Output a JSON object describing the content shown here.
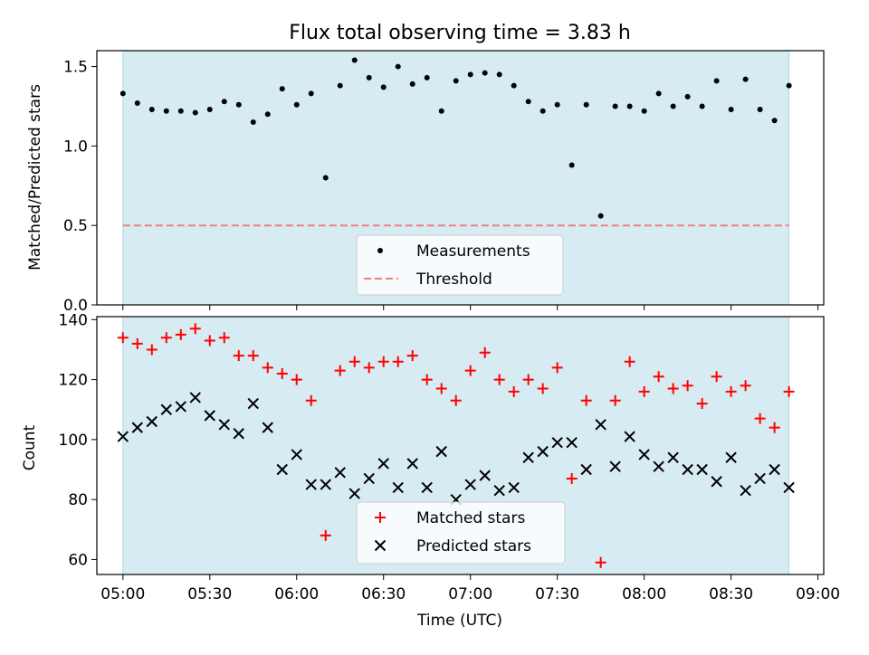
{
  "chart_data": [
    {
      "type": "scatter",
      "title": "Flux total observing time = 3.83 h",
      "xlabel": "",
      "ylabel": "Matched/Predicted stars",
      "ylim": [
        0,
        1.6
      ],
      "xlim": [
        "04:51",
        "09:02"
      ],
      "yticks": [
        "0.0",
        "0.5",
        "1.0",
        "1.5"
      ],
      "shaded_span": [
        "05:00",
        "08:50"
      ],
      "legend_position": "bottom-center",
      "series": [
        {
          "name": "Measurements",
          "color": "#000000",
          "marker": "dot",
          "x": [
            "05:00",
            "05:05",
            "05:10",
            "05:15",
            "05:20",
            "05:25",
            "05:30",
            "05:35",
            "05:40",
            "05:45",
            "05:50",
            "05:55",
            "06:00",
            "06:05",
            "06:10",
            "06:15",
            "06:20",
            "06:25",
            "06:30",
            "06:35",
            "06:40",
            "06:45",
            "06:50",
            "06:55",
            "07:00",
            "07:05",
            "07:10",
            "07:15",
            "07:20",
            "07:25",
            "07:30",
            "07:35",
            "07:40",
            "07:45",
            "07:50",
            "07:55",
            "08:00",
            "08:05",
            "08:10",
            "08:15",
            "08:20",
            "08:25",
            "08:30",
            "08:35",
            "08:40",
            "08:45",
            "08:50"
          ],
          "y": [
            1.33,
            1.27,
            1.23,
            1.22,
            1.22,
            1.21,
            1.23,
            1.28,
            1.26,
            1.15,
            1.2,
            1.36,
            1.26,
            1.33,
            0.8,
            1.38,
            1.54,
            1.43,
            1.37,
            1.5,
            1.39,
            1.43,
            1.22,
            1.41,
            1.45,
            1.46,
            1.45,
            1.38,
            1.28,
            1.22,
            1.26,
            0.88,
            1.26,
            0.56,
            1.25,
            1.25,
            1.22,
            1.33,
            1.25,
            1.31,
            1.25,
            1.41,
            1.23,
            1.42,
            1.23,
            1.16,
            1.38
          ]
        },
        {
          "name": "Threshold",
          "color": "#f08080",
          "style": "dashed",
          "x": [
            "05:00",
            "08:50"
          ],
          "y": [
            0.5,
            0.5
          ]
        }
      ]
    },
    {
      "type": "scatter",
      "title": "",
      "xlabel": "Time (UTC)",
      "ylabel": "Count",
      "ylim": [
        55,
        141
      ],
      "xlim": [
        "04:51",
        "09:02"
      ],
      "yticks": [
        "60",
        "80",
        "100",
        "120",
        "140"
      ],
      "xticks": [
        "05:00",
        "05:30",
        "06:00",
        "06:30",
        "07:00",
        "07:30",
        "08:00",
        "08:30",
        "09:00"
      ],
      "shaded_span": [
        "05:00",
        "08:50"
      ],
      "legend_position": "bottom-center",
      "series": [
        {
          "name": "Matched stars",
          "color": "#ff0000",
          "marker": "plus",
          "x": [
            "05:00",
            "05:05",
            "05:10",
            "05:15",
            "05:20",
            "05:25",
            "05:30",
            "05:35",
            "05:40",
            "05:45",
            "05:50",
            "05:55",
            "06:00",
            "06:05",
            "06:10",
            "06:15",
            "06:20",
            "06:25",
            "06:30",
            "06:35",
            "06:40",
            "06:45",
            "06:50",
            "06:55",
            "07:00",
            "07:05",
            "07:10",
            "07:15",
            "07:20",
            "07:25",
            "07:30",
            "07:35",
            "07:40",
            "07:45",
            "07:50",
            "07:55",
            "08:00",
            "08:05",
            "08:10",
            "08:15",
            "08:20",
            "08:25",
            "08:30",
            "08:35",
            "08:40",
            "08:45",
            "08:50"
          ],
          "y": [
            134,
            132,
            130,
            134,
            135,
            137,
            133,
            134,
            128,
            128,
            124,
            122,
            120,
            113,
            68,
            123,
            126,
            124,
            126,
            126,
            128,
            120,
            117,
            113,
            123,
            129,
            120,
            116,
            120,
            117,
            124,
            87,
            113,
            59,
            113,
            126,
            116,
            121,
            117,
            118,
            112,
            121,
            116,
            118,
            107,
            104,
            116
          ]
        },
        {
          "name": "Predicted stars",
          "color": "#000000",
          "marker": "x",
          "x": [
            "05:00",
            "05:05",
            "05:10",
            "05:15",
            "05:20",
            "05:25",
            "05:30",
            "05:35",
            "05:40",
            "05:45",
            "05:50",
            "05:55",
            "06:00",
            "06:05",
            "06:10",
            "06:15",
            "06:20",
            "06:25",
            "06:30",
            "06:35",
            "06:40",
            "06:45",
            "06:50",
            "06:55",
            "07:00",
            "07:05",
            "07:10",
            "07:15",
            "07:20",
            "07:25",
            "07:30",
            "07:35",
            "07:40",
            "07:45",
            "07:50",
            "07:55",
            "08:00",
            "08:05",
            "08:10",
            "08:15",
            "08:20",
            "08:25",
            "08:30",
            "08:35",
            "08:40",
            "08:45",
            "08:50"
          ],
          "y": [
            101,
            104,
            106,
            110,
            111,
            114,
            108,
            105,
            102,
            112,
            104,
            90,
            95,
            85,
            85,
            89,
            82,
            87,
            92,
            84,
            92,
            84,
            96,
            80,
            85,
            88,
            83,
            84,
            94,
            96,
            99,
            99,
            90,
            105,
            91,
            101,
            95,
            91,
            94,
            90,
            90,
            86,
            94,
            83,
            87,
            90,
            84
          ]
        }
      ]
    }
  ]
}
